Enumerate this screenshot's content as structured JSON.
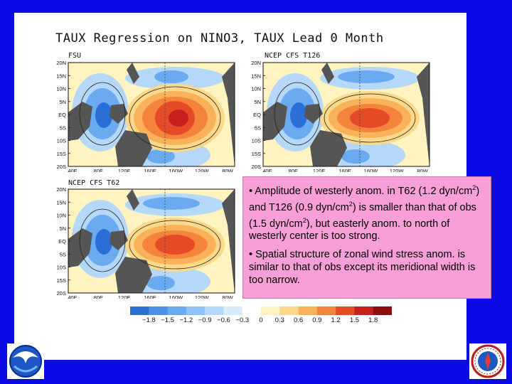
{
  "title": "TAUX Regression on NINO3, TAUX Lead 0 Month",
  "panels": [
    {
      "label": "FSU"
    },
    {
      "label": "NCEP CFS T126"
    },
    {
      "label": "NCEP CFS T62"
    }
  ],
  "lat_ticks": [
    "20N",
    "15N",
    "10N",
    "5N",
    "EQ",
    "5S",
    "10S",
    "15S",
    "20S"
  ],
  "lon_ticks": [
    "40E",
    "80E",
    "120E",
    "160E",
    "160W",
    "120W",
    "80W"
  ],
  "bullets": [
    {
      "prefix": "• Amplitude of westerly anom. in T62 (1.2 dyn/cm",
      "sup1": "2",
      "mid": ") and T126 (0.9 dyn/cm",
      "sup2": "2",
      "mid2": ") is smaller than that of obs (1.5 dyn/cm",
      "sup3": "2",
      "suffix": "), but easterly anom. to north of westerly center is too strong."
    },
    {
      "text": "• Spatial structure of zonal wind stress anom. is similar to that of obs except its meridional width is too narrow."
    }
  ],
  "colorbar": {
    "labels": [
      "−1.8",
      "−1.5",
      "−1.2",
      "−0.9",
      "−0.6",
      "−0.3",
      "0",
      "0.3",
      "0.6",
      "0.9",
      "1.2",
      "1.5",
      "1.8"
    ],
    "colors": [
      "#2a6fd6",
      "#4b8fe8",
      "#6aaaf0",
      "#8ec3f6",
      "#b6d8f8",
      "#d9ebfb",
      "#ffffff",
      "#fff3c0",
      "#fcd98a",
      "#f9b25a",
      "#f4843a",
      "#e54b26",
      "#c81f1f",
      "#8e0e0e"
    ]
  },
  "logos": {
    "left": "noaa-logo",
    "right": "nws-logo"
  }
}
